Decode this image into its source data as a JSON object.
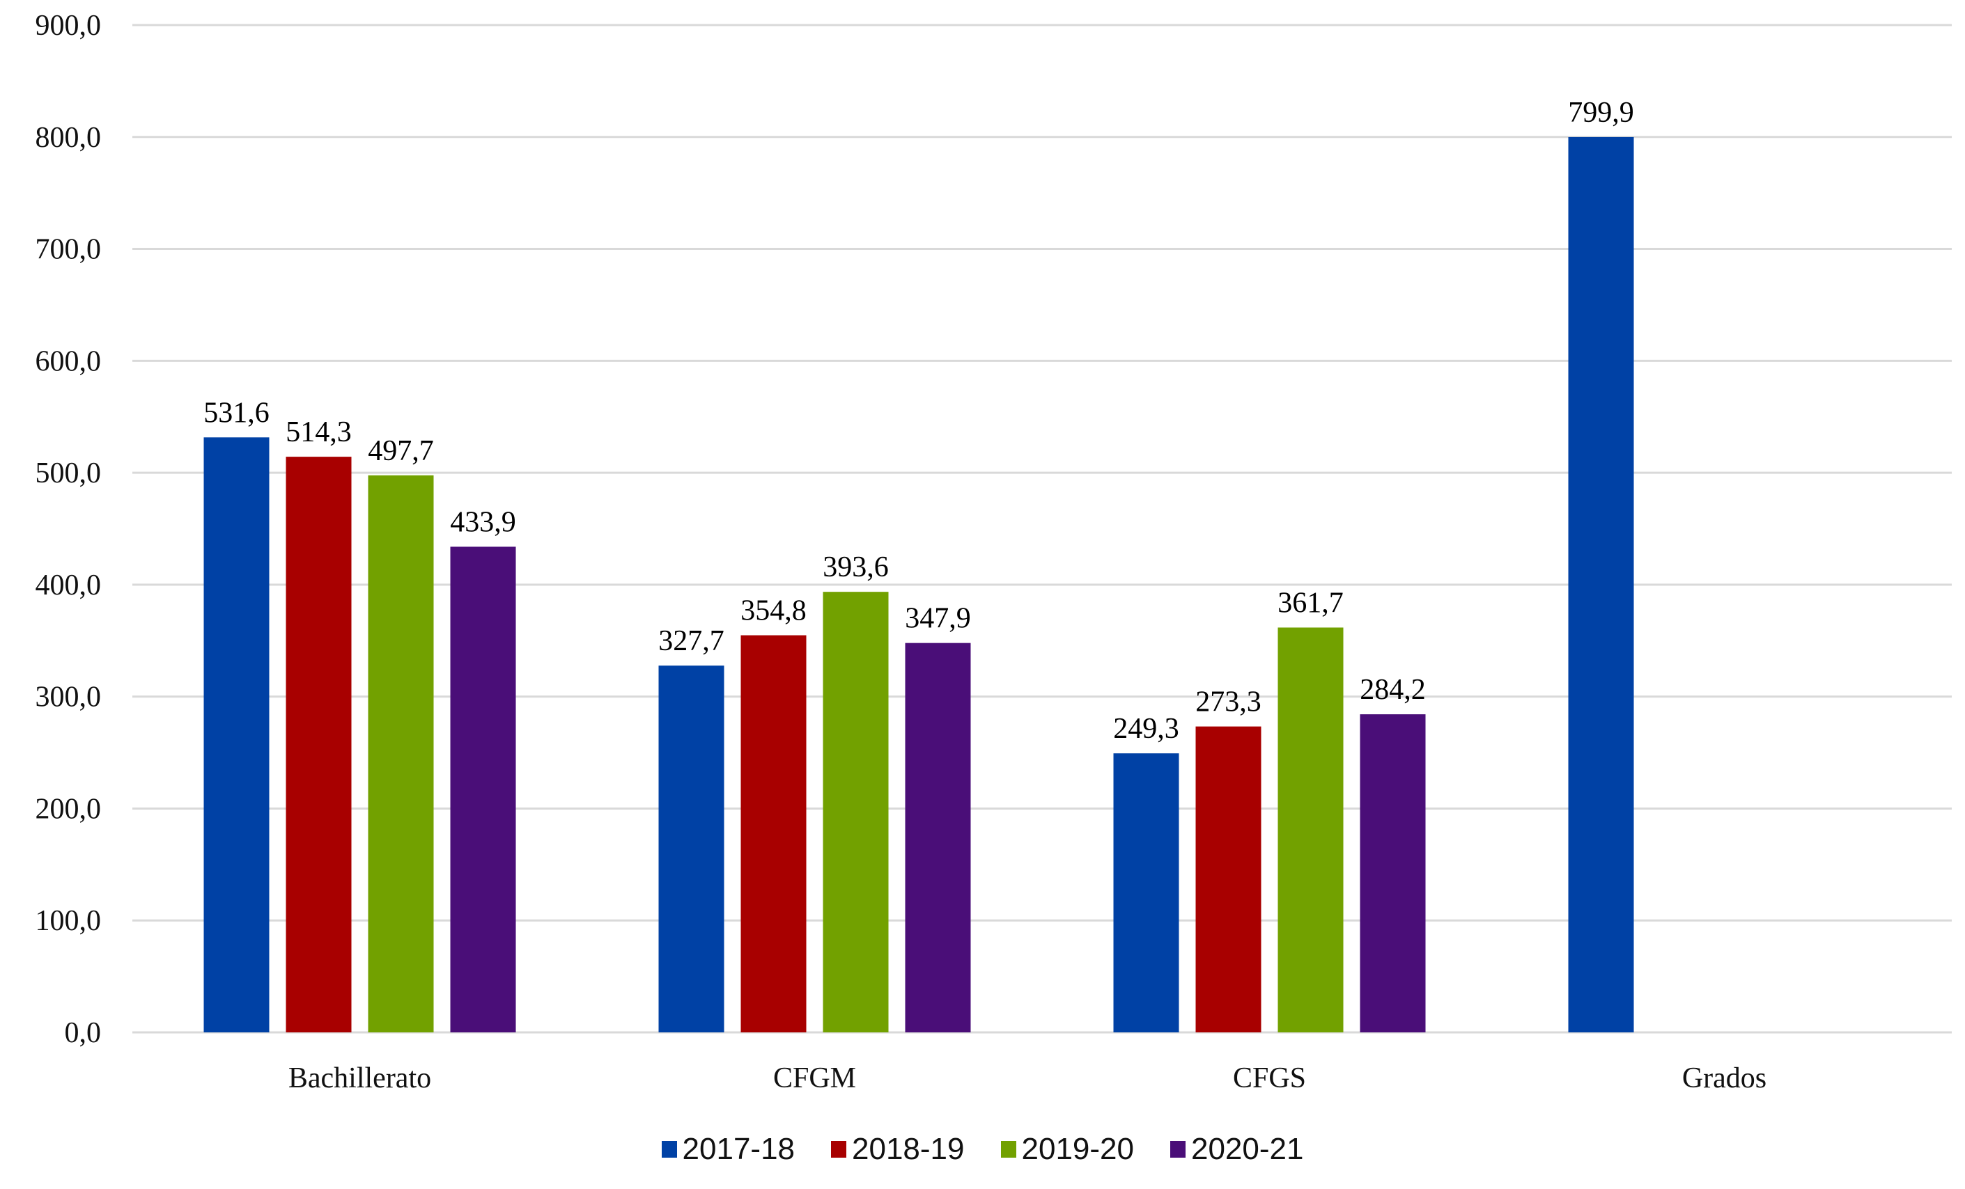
{
  "chart_data": {
    "type": "bar",
    "title": "",
    "xlabel": "",
    "ylabel": "",
    "ylim": [
      0,
      900
    ],
    "yticks": [
      "0,0",
      "100,0",
      "200,0",
      "300,0",
      "400,0",
      "500,0",
      "600,0",
      "700,0",
      "800,0",
      "900,0"
    ],
    "grid": true,
    "legend_position": "bottom",
    "categories": [
      "Bachillerato",
      "CFGM",
      "CFGS",
      "Grados"
    ],
    "series": [
      {
        "name": "2017-18",
        "color": "#0041A5",
        "values": [
          531.6,
          327.7,
          249.3,
          799.9
        ],
        "labels": [
          "531,6",
          "327,7",
          "249,3",
          "799,9"
        ]
      },
      {
        "name": "2018-19",
        "color": "#A80000",
        "values": [
          514.3,
          354.8,
          273.3,
          null
        ],
        "labels": [
          "514,3",
          "354,8",
          "273,3",
          null
        ]
      },
      {
        "name": "2019-20",
        "color": "#72A100",
        "values": [
          497.7,
          393.6,
          361.7,
          null
        ],
        "labels": [
          "497,7",
          "393,6",
          "361,7",
          null
        ]
      },
      {
        "name": "2020-21",
        "color": "#4A0E78",
        "values": [
          433.9,
          347.9,
          284.2,
          null
        ],
        "labels": [
          "433,9",
          "347,9",
          "284,2",
          null
        ]
      }
    ]
  }
}
